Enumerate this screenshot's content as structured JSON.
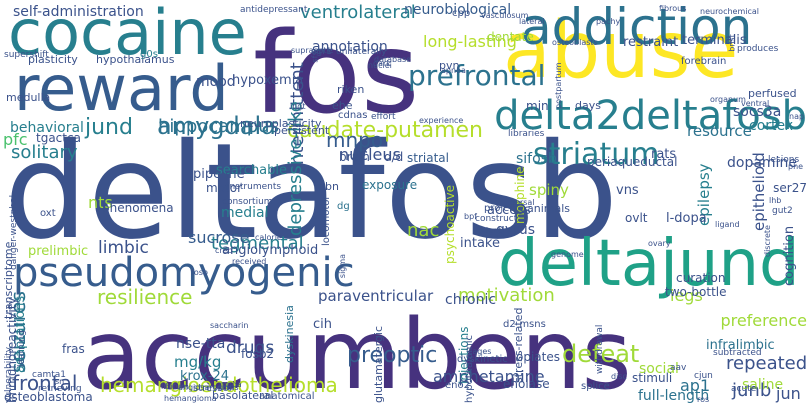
{
  "word_cloud": {
    "background": "#ffffff",
    "palette": [
      "#46327e",
      "#365c8d",
      "#277f8e",
      "#1fa187",
      "#4ac16d",
      "#a0da39",
      "#fde725"
    ],
    "words": [
      {
        "text": "deltafosb",
        "color": "#3b528b"
      },
      {
        "text": "accumbens",
        "color": "#46327e"
      },
      {
        "text": "reward",
        "color": "#365c8d"
      },
      {
        "text": "fos",
        "color": "#46327e"
      },
      {
        "text": "abuse",
        "color": "#fde725"
      },
      {
        "text": "cocaine",
        "color": "#277f8e"
      },
      {
        "text": "addiction",
        "color": "#2c728e"
      },
      {
        "text": "pseudomyogenic",
        "color": "#365c8d"
      },
      {
        "text": "deltajund",
        "color": "#1fa187"
      },
      {
        "text": "delta2deltafosb",
        "color": "#277f8e"
      },
      {
        "text": "striatum",
        "color": "#277f8e"
      },
      {
        "text": "prefrontal",
        "color": "#2c728e"
      },
      {
        "text": "caudate-putamen",
        "color": "#b5de2b"
      },
      {
        "text": "amygdala",
        "color": "#2c728e"
      },
      {
        "text": "resilience",
        "color": "#a0da39"
      },
      {
        "text": "hemangioendothelioma",
        "color": "#b5de2b"
      },
      {
        "text": "motivation",
        "color": "#a0da39"
      },
      {
        "text": "preoptic",
        "color": "#365c8d"
      },
      {
        "text": "defeat",
        "color": "#a0da39"
      },
      {
        "text": "self-administration",
        "color": "#3b528b"
      },
      {
        "text": "ventrolateral",
        "color": "#277f8e"
      },
      {
        "text": "neurobiological",
        "color": "#365c8d"
      },
      {
        "text": "annotation",
        "color": "#3b528b"
      },
      {
        "text": "long-lasting",
        "color": "#b5de2b"
      },
      {
        "text": "plasticity",
        "color": "#3b528b"
      },
      {
        "text": "hypothalamus",
        "color": "#3b528b"
      },
      {
        "text": "mood",
        "color": "#3b528b"
      },
      {
        "text": "hypoxemia",
        "color": "#3b528b"
      },
      {
        "text": "restraint",
        "color": "#3b528b"
      },
      {
        "text": "terminalis",
        "color": "#3b528b"
      },
      {
        "text": "jund",
        "color": "#277f8e"
      },
      {
        "text": "hippocampus",
        "color": "#2c728e"
      },
      {
        "text": "mnpo",
        "color": "#365c8d"
      },
      {
        "text": "behavioral",
        "color": "#277f8e"
      },
      {
        "text": "solitary",
        "color": "#277f8e"
      },
      {
        "text": "pfc",
        "color": "#4ac16d"
      },
      {
        "text": "tgactca",
        "color": "#3b528b"
      },
      {
        "text": "intermittent",
        "color": "#3b528b"
      },
      {
        "text": "depressive-like",
        "color": "#277f8e"
      },
      {
        "text": "nucleus",
        "color": "#3b528b"
      },
      {
        "text": "tegmental",
        "color": "#277f8e"
      },
      {
        "text": "medial",
        "color": "#277f8e"
      },
      {
        "text": "searchable",
        "color": "#277f8e"
      },
      {
        "text": "nts",
        "color": "#a0da39"
      },
      {
        "text": "limbic",
        "color": "#3b528b"
      },
      {
        "text": "prelimbic",
        "color": "#a0da39"
      },
      {
        "text": "sucrose",
        "color": "#365c8d"
      },
      {
        "text": "angiolymphoid",
        "color": "#3b528b"
      },
      {
        "text": "psychoactive",
        "color": "#b5de2b"
      },
      {
        "text": "chronic",
        "color": "#3b528b"
      },
      {
        "text": "nac",
        "color": "#a0da39"
      },
      {
        "text": "seizures",
        "color": "#2c728e"
      },
      {
        "text": "paraventricular",
        "color": "#3b528b"
      },
      {
        "text": "iegs",
        "color": "#a0da39"
      },
      {
        "text": "preference",
        "color": "#a0da39"
      },
      {
        "text": "infralimbic",
        "color": "#2c728e"
      },
      {
        "text": "repeated",
        "color": "#3b528b"
      },
      {
        "text": "junb",
        "color": "#3b528b"
      },
      {
        "text": "saline",
        "color": "#a0da39"
      },
      {
        "text": "amphetamine",
        "color": "#3b528b"
      },
      {
        "text": "social",
        "color": "#a0da39"
      },
      {
        "text": "ap1",
        "color": "#2c728e"
      },
      {
        "text": "full-length",
        "color": "#2c728e"
      },
      {
        "text": "jun",
        "color": "#3b528b"
      },
      {
        "text": "frontal",
        "color": "#3b528b"
      },
      {
        "text": "drugs",
        "color": "#3b528b"
      },
      {
        "text": "mg/kg",
        "color": "#277f8e"
      },
      {
        "text": "krox-24",
        "color": "#2c728e"
      },
      {
        "text": "nse-tta",
        "color": "#3b528b"
      },
      {
        "text": "fras",
        "color": "#3b528b"
      },
      {
        "text": "cih",
        "color": "#3b528b"
      },
      {
        "text": "dopamine",
        "color": "#3b528b"
      },
      {
        "text": "cortex",
        "color": "#277f8e"
      },
      {
        "text": "resource",
        "color": "#2c728e"
      },
      {
        "text": "rats",
        "color": "#3b528b"
      },
      {
        "text": "socs3a",
        "color": "#3b528b"
      },
      {
        "text": "ser27",
        "color": "#3b528b"
      },
      {
        "text": "epithelioid",
        "color": "#3b528b"
      },
      {
        "text": "epilepsy",
        "color": "#277f8e"
      },
      {
        "text": "l-dopa",
        "color": "#3b528b"
      },
      {
        "text": "cognition",
        "color": "#3b528b"
      },
      {
        "text": "injections",
        "color": "#277f8e"
      },
      {
        "text": "stress-related",
        "color": "#3b528b"
      },
      {
        "text": "morphine",
        "color": "#b5de2b"
      },
      {
        "text": "exposure",
        "color": "#2c728e"
      },
      {
        "text": "access",
        "color": "#3b528b"
      },
      {
        "text": "gyrus",
        "color": "#3b528b"
      },
      {
        "text": "intake",
        "color": "#3b528b"
      },
      {
        "text": "d2-msns",
        "color": "#3b528b"
      },
      {
        "text": "opiates",
        "color": "#3b528b"
      },
      {
        "text": "enolase",
        "color": "#3b528b"
      },
      {
        "text": "stimuli",
        "color": "#3b528b"
      },
      {
        "text": "two-bottle",
        "color": "#3b528b"
      },
      {
        "text": "curation",
        "color": "#3b528b"
      },
      {
        "text": "ovlt",
        "color": "#3b528b"
      },
      {
        "text": "vns",
        "color": "#3b528b"
      },
      {
        "text": "spiny",
        "color": "#a0da39"
      },
      {
        "text": "striatal",
        "color": "#365c8d"
      },
      {
        "text": "d/d",
        "color": "#3b528b"
      },
      {
        "text": "brain",
        "color": "#3b528b"
      },
      {
        "text": "sifosb",
        "color": "#2c728e"
      },
      {
        "text": "periaqueductal",
        "color": "#3b528b"
      },
      {
        "text": "pipeline",
        "color": "#3b528b"
      },
      {
        "text": "motor",
        "color": "#3b528b"
      },
      {
        "text": "phenomena",
        "color": "#3b528b"
      },
      {
        "text": "stressor",
        "color": "#3b528b"
      },
      {
        "text": "fosb2",
        "color": "#3b528b"
      },
      {
        "text": "dyskinesia",
        "color": "#2c728e"
      },
      {
        "text": "basolateral",
        "color": "#3b528b"
      },
      {
        "text": "anatomical",
        "color": "#3b528b"
      },
      {
        "text": "osteoblastoma",
        "color": "#3b528b"
      },
      {
        "text": "adaptations",
        "color": "#277f8e"
      },
      {
        "text": "immunoreactivity",
        "color": "#3b528b"
      },
      {
        "text": "vulnerability",
        "color": "#3b528b"
      },
      {
        "text": "camta1",
        "color": "#3b528b"
      },
      {
        "text": "retrieving",
        "color": "#3b528b"
      },
      {
        "text": "learning",
        "color": "#3b528b"
      },
      {
        "text": "transcriptome",
        "color": "#3b528b"
      },
      {
        "text": "danger-westphal",
        "color": "#3b528b"
      },
      {
        "text": "oxt",
        "color": "#3b528b"
      },
      {
        "text": "g0s",
        "color": "#277f8e"
      },
      {
        "text": "antidepressant",
        "color": "#3b528b"
      },
      {
        "text": "supershift",
        "color": "#3b528b"
      },
      {
        "text": "riken",
        "color": "#3b528b"
      },
      {
        "text": "ehe",
        "color": "#3b528b"
      },
      {
        "text": "cdnas",
        "color": "#3b528b"
      },
      {
        "text": "persistent",
        "color": "#3b528b"
      },
      {
        "text": "medulla",
        "color": "#3b528b"
      },
      {
        "text": "neuroplasticity",
        "color": "#3b528b"
      },
      {
        "text": "pvn",
        "color": "#3b528b"
      },
      {
        "text": "dentate",
        "color": "#a0da39"
      },
      {
        "text": "cpp",
        "color": "#3b528b"
      },
      {
        "text": "min",
        "color": "#3b528b"
      },
      {
        "text": "days",
        "color": "#3b528b"
      },
      {
        "text": "forebrain",
        "color": "#3b528b"
      },
      {
        "text": "produces",
        "color": "#3b528b"
      },
      {
        "text": "perfused",
        "color": "#3b528b"
      },
      {
        "text": "libraries",
        "color": "#3b528b"
      },
      {
        "text": "project",
        "color": "#3b528b"
      },
      {
        "text": "animals",
        "color": "#3b528b"
      },
      {
        "text": "construct",
        "color": "#3b528b"
      },
      {
        "text": "dg",
        "color": "#2c728e"
      },
      {
        "text": "pbn",
        "color": "#3b528b"
      },
      {
        "text": "locomotor",
        "color": "#3b528b"
      },
      {
        "text": "instruments",
        "color": "#3b528b"
      },
      {
        "text": "consortium",
        "color": "#3b528b"
      },
      {
        "text": "glutamatergic",
        "color": "#3b528b"
      },
      {
        "text": "hypothalamic",
        "color": "#3b528b"
      },
      {
        "text": "dyskinetic",
        "color": "#3b528b"
      },
      {
        "text": "eno2",
        "color": "#3b528b"
      },
      {
        "text": "hemangioma",
        "color": "#3b528b"
      },
      {
        "text": "angiosarcomas",
        "color": "#3b528b"
      },
      {
        "text": "saccharin",
        "color": "#3b528b"
      },
      {
        "text": "withdrawal",
        "color": "#3b528b"
      },
      {
        "text": "acute",
        "color": "#3b528b"
      },
      {
        "text": "aav",
        "color": "#3b528b"
      },
      {
        "text": "cjun",
        "color": "#3b528b"
      },
      {
        "text": "splice",
        "color": "#3b528b"
      },
      {
        "text": "subtracted",
        "color": "#3b528b"
      },
      {
        "text": "lesions",
        "color": "#3b528b"
      },
      {
        "text": "discrete",
        "color": "#3b528b"
      },
      {
        "text": "gut2",
        "color": "#3b528b"
      },
      {
        "text": "unilaterally",
        "color": "#3b528b"
      },
      {
        "text": "database",
        "color": "#3b528b"
      },
      {
        "text": "nuclei",
        "color": "#3b528b"
      },
      {
        "text": "dark",
        "color": "#3b528b"
      },
      {
        "text": "apnea",
        "color": "#3b528b"
      },
      {
        "text": "effort",
        "color": "#3b528b"
      },
      {
        "text": "experience",
        "color": "#3b528b"
      },
      {
        "text": "vasculosum",
        "color": "#3b528b"
      },
      {
        "text": "lateral",
        "color": "#3b528b"
      },
      {
        "text": "neurochemical",
        "color": "#3b528b"
      },
      {
        "text": "pachy",
        "color": "#3b528b"
      },
      {
        "text": "osteoblasts",
        "color": "#3b528b"
      },
      {
        "text": "postpartum",
        "color": "#3b528b"
      },
      {
        "text": "fibrous",
        "color": "#3b528b"
      },
      {
        "text": "organum",
        "color": "#3b528b"
      },
      {
        "text": "ventral",
        "color": "#3b528b"
      },
      {
        "text": "supraoptic",
        "color": "#3b528b"
      },
      {
        "text": "sfs",
        "color": "#3b528b"
      },
      {
        "text": "egr1",
        "color": "#3b528b"
      },
      {
        "text": "rodent",
        "color": "#3b528b"
      },
      {
        "text": "genome",
        "color": "#3b528b"
      },
      {
        "text": "bpf",
        "color": "#3b528b"
      },
      {
        "text": "dorsal",
        "color": "#3b528b"
      },
      {
        "text": "ovary",
        "color": "#3b528b"
      },
      {
        "text": "ligand",
        "color": "#3b528b"
      },
      {
        "text": "phe",
        "color": "#3b528b"
      },
      {
        "text": "nap",
        "color": "#3b528b"
      },
      {
        "text": "ingt",
        "color": "#3b528b"
      },
      {
        "text": "creb",
        "color": "#3b528b"
      },
      {
        "text": "fosb",
        "color": "#3b528b"
      },
      {
        "text": "received",
        "color": "#3b528b"
      },
      {
        "text": "calorie",
        "color": "#3b528b"
      },
      {
        "text": "sigma",
        "color": "#3b528b"
      },
      {
        "text": "mpoa",
        "color": "#3b528b"
      },
      {
        "text": "libitum",
        "color": "#3b528b"
      },
      {
        "text": "cages",
        "color": "#3b528b"
      },
      {
        "text": "disc",
        "color": "#3b528b"
      },
      {
        "text": "bnst",
        "color": "#3b528b"
      },
      {
        "text": "lhb",
        "color": "#3b528b"
      },
      {
        "text": "ros",
        "color": "#3b528b"
      },
      {
        "text": "sn",
        "color": "#3b528b"
      }
    ]
  }
}
